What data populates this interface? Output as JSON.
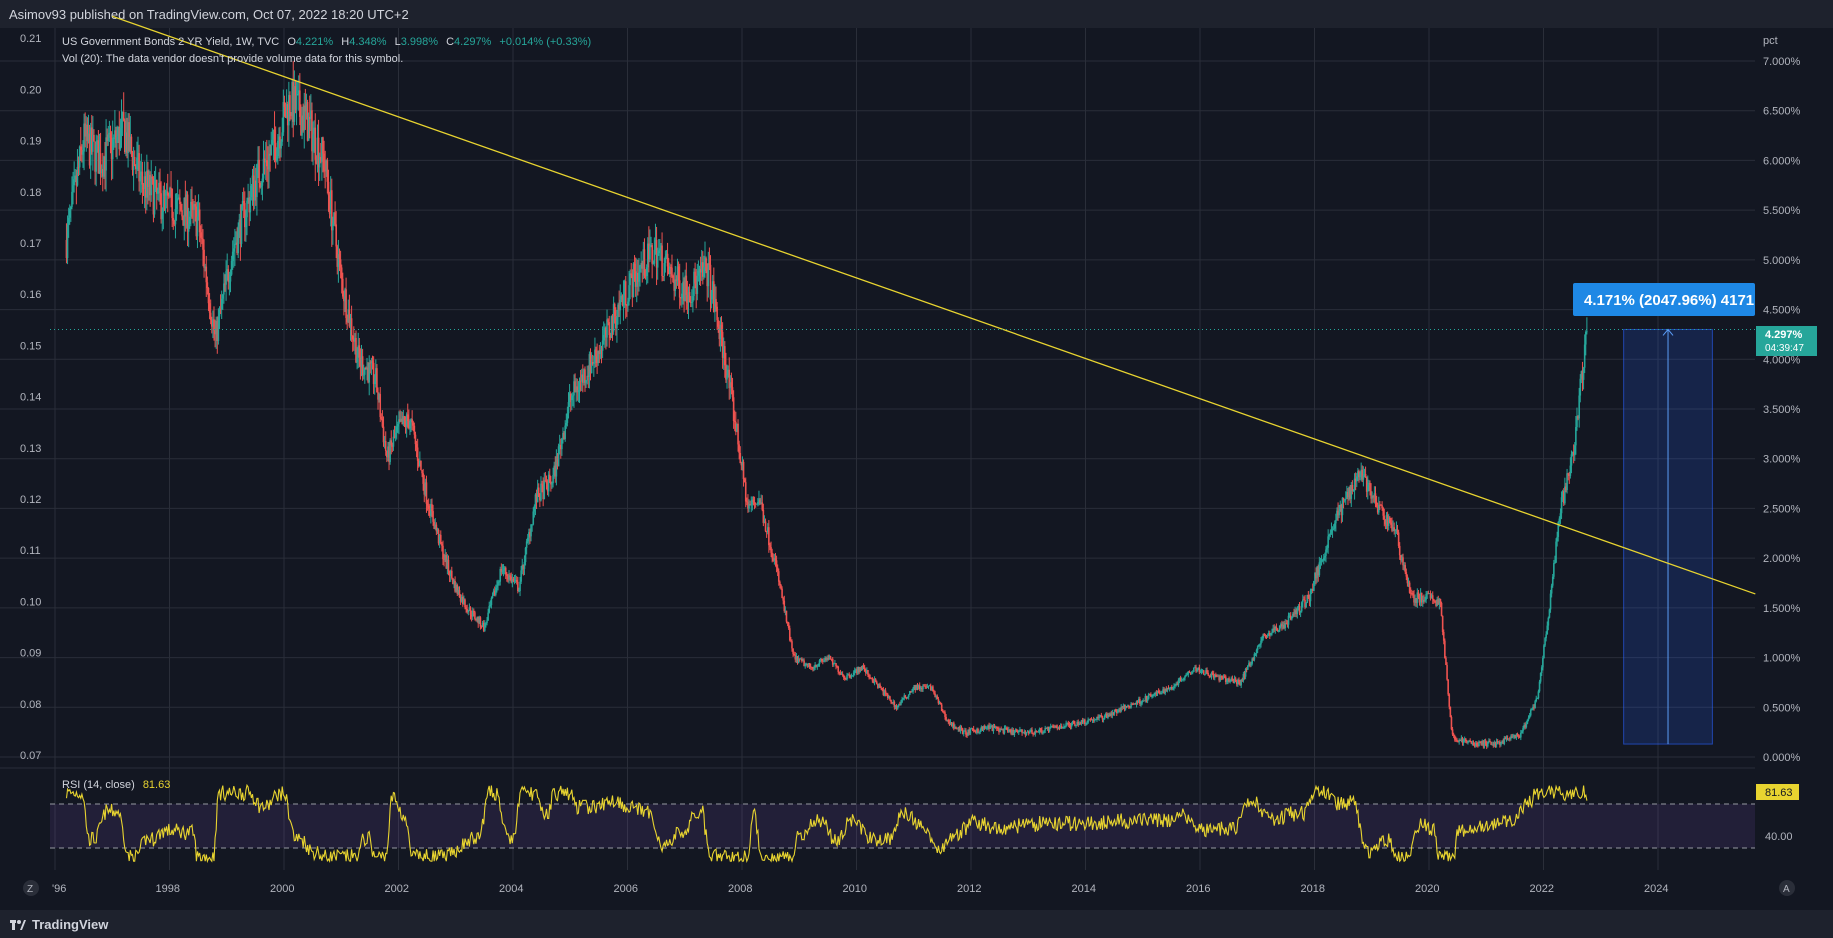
{
  "header": {
    "published_text": "Asimov93 published on TradingView.com, Oct 07, 2022 18:20 UTC+2"
  },
  "legend": {
    "symbol_text": "US Government Bonds 2 YR Yield, 1W, TVC",
    "open_label": "O",
    "open_value": "4.221%",
    "high_label": "H",
    "high_value": "4.348%",
    "low_label": "L",
    "low_value": "3.998%",
    "close_label": "C",
    "close_value": "4.297%",
    "change_text": "+0.014% (+0.33%)",
    "volume_note": "Vol (20): The data vendor doesn't provide volume data for this symbol."
  },
  "rsi": {
    "label": "RSI (14, close)",
    "value": "81.63",
    "level_label": "40.00",
    "upper": 70,
    "lower": 30
  },
  "price_badge": {
    "value": "4.297%",
    "countdown": "04:39:47"
  },
  "measure": {
    "label": "4.171% (2047.96%) 4171",
    "from": 0.13,
    "to": 4.3,
    "x_start": 2023.4,
    "x_end": 2024.95
  },
  "trendline": {
    "x1": 1997.0,
    "y1": 7.45,
    "x2": 2025.7,
    "y2": 1.64
  },
  "axes": {
    "right_unit": "pct",
    "right_ticks": [
      "0.000%",
      "0.500%",
      "1.000%",
      "1.500%",
      "2.000%",
      "2.500%",
      "3.000%",
      "3.500%",
      "4.000%",
      "4.500%",
      "5.000%",
      "5.500%",
      "6.000%",
      "6.500%",
      "7.000%"
    ],
    "left_ticks": [
      "0.07",
      "0.08",
      "0.09",
      "0.10",
      "0.11",
      "0.12",
      "0.13",
      "0.14",
      "0.15",
      "0.16",
      "0.17",
      "0.18",
      "0.19",
      "0.20",
      "0.21"
    ],
    "x_ticks": [
      "'96",
      "1998",
      "2000",
      "2002",
      "2004",
      "2006",
      "2008",
      "2010",
      "2012",
      "2014",
      "2016",
      "2018",
      "2020",
      "2022",
      "2024"
    ],
    "x_tick_values": [
      1996,
      1998,
      2000,
      2002,
      2004,
      2006,
      2008,
      2010,
      2012,
      2014,
      2016,
      2018,
      2020,
      2022,
      2024
    ],
    "timezone_button": "Z",
    "auto_button": "A"
  },
  "footer": {
    "brand": "TradingView"
  },
  "colors": {
    "background": "#131722",
    "bull": "#26a69a",
    "bear": "#ef5350",
    "trendline": "#e8d430",
    "rsi": "#e8d430",
    "measure": "#2962ff",
    "grid": "#2a2e39",
    "text": "#b2b5be"
  },
  "chart_data": {
    "type": "line",
    "series": [
      {
        "x": [
          1996.2,
          1996.5,
          1996.8,
          1997.2,
          1997.5,
          1997.8,
          1998.2,
          1998.5,
          1998.8,
          1999.1,
          1999.5,
          1999.8,
          2000.1,
          2000.4,
          2000.7,
          2001.0,
          2001.3,
          2001.6,
          2001.8,
          2002.0,
          2002.2,
          2002.5,
          2002.8,
          2003.0,
          2003.2,
          2003.5,
          2003.8,
          2004.1,
          2004.4,
          2004.7,
          2005.0,
          2005.3,
          2005.6,
          2005.9,
          2006.2,
          2006.5,
          2006.8,
          2007.1,
          2007.4,
          2007.7,
          2007.9,
          2008.1,
          2008.3,
          2008.6,
          2008.9,
          2009.2,
          2009.5,
          2009.8,
          2010.1,
          2010.4,
          2010.7,
          2011.0,
          2011.3,
          2011.6,
          2011.9,
          2012.3,
          2012.7,
          2013.1,
          2013.5,
          2013.9,
          2014.3,
          2014.7,
          2015.1,
          2015.5,
          2015.9,
          2016.3,
          2016.7,
          2017.1,
          2017.5,
          2017.9,
          2018.3,
          2018.8,
          2019.1,
          2019.4,
          2019.7,
          2020.0,
          2020.2,
          2020.4,
          2020.8,
          2021.2,
          2021.6,
          2021.9,
          2022.1,
          2022.3,
          2022.5,
          2022.77
        ],
        "y": [
          5.2,
          6.2,
          6.0,
          6.3,
          5.8,
          5.6,
          5.5,
          5.4,
          4.2,
          5.1,
          5.8,
          6.1,
          6.6,
          6.4,
          6.0,
          4.8,
          4.0,
          3.8,
          3.0,
          3.3,
          3.4,
          2.6,
          2.0,
          1.7,
          1.5,
          1.3,
          1.9,
          1.7,
          2.6,
          2.8,
          3.6,
          3.9,
          4.2,
          4.6,
          4.9,
          5.1,
          4.8,
          4.7,
          4.9,
          4.0,
          3.3,
          2.5,
          2.6,
          1.9,
          1.0,
          0.9,
          1.0,
          0.8,
          0.9,
          0.7,
          0.5,
          0.7,
          0.7,
          0.35,
          0.24,
          0.3,
          0.25,
          0.25,
          0.3,
          0.35,
          0.4,
          0.5,
          0.6,
          0.7,
          0.9,
          0.8,
          0.75,
          1.2,
          1.35,
          1.6,
          2.3,
          2.9,
          2.5,
          2.3,
          1.6,
          1.6,
          1.55,
          0.2,
          0.13,
          0.14,
          0.22,
          0.6,
          1.5,
          2.5,
          3.0,
          4.3
        ]
      }
    ],
    "xlim": [
      1995.8,
      2025.8
    ],
    "ylim": [
      0.0,
      7.2
    ],
    "ylabel": "pct",
    "grid": true
  }
}
